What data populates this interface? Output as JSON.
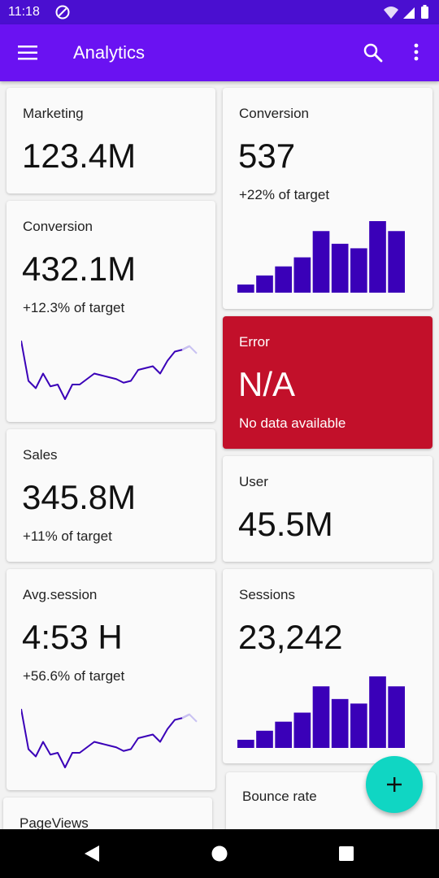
{
  "status_bar": {
    "time": "11:18",
    "dnd_icon": "dnd-circle-icon",
    "wifi_icon": "wifi-icon",
    "signal_icon": "signal-icon",
    "battery_icon": "battery-icon"
  },
  "app_bar": {
    "title": "Analytics",
    "menu_icon": "hamburger-menu-icon",
    "search_icon": "search-icon",
    "more_icon": "more-vert-icon",
    "color": "#6a12f2"
  },
  "cards": {
    "marketing": {
      "title": "Marketing",
      "value": "123.4M"
    },
    "conversion_left": {
      "title": "Conversion",
      "value": "432.1M",
      "subtitle": "+12.3% of target",
      "chart_data": {
        "type": "line",
        "values": [
          40,
          18,
          14,
          22,
          15,
          16,
          8,
          16,
          16,
          19,
          22,
          21,
          20,
          19,
          17,
          18,
          24,
          25,
          26,
          22,
          29,
          34,
          35,
          37,
          33
        ]
      }
    },
    "sales": {
      "title": "Sales",
      "value": "345.8M",
      "subtitle": "+11% of target"
    },
    "avg_session": {
      "title": "Avg.session",
      "value": "4:53 H",
      "subtitle": "+56.6% of target",
      "chart_data": {
        "type": "line",
        "values": [
          40,
          18,
          14,
          22,
          15,
          16,
          8,
          16,
          16,
          19,
          22,
          21,
          20,
          19,
          17,
          18,
          24,
          25,
          26,
          22,
          29,
          34,
          35,
          37,
          33
        ]
      }
    },
    "pageviews": {
      "title": "PageViews",
      "value": ""
    },
    "conversion_right": {
      "title": "Conversion",
      "value": "537",
      "subtitle": "+22% of target",
      "chart_data": {
        "type": "bar",
        "values": [
          9,
          19,
          29,
          39,
          68,
          54,
          49,
          79,
          68
        ]
      }
    },
    "error": {
      "title": "Error",
      "value": "N/A",
      "subtitle": "No data available",
      "color": "#c2102a"
    },
    "user": {
      "title": "User",
      "value": "45.5M"
    },
    "sessions": {
      "title": "Sessions",
      "value": "23,242",
      "chart_data": {
        "type": "bar",
        "values": [
          9,
          19,
          29,
          39,
          68,
          54,
          49,
          79,
          68
        ]
      }
    },
    "bounce_rate": {
      "title": "Bounce rate",
      "value": ""
    }
  },
  "colors": {
    "chart_primary": "#3a00b8",
    "chart_faded": "#c9c2f2",
    "fab": "#10d6c3"
  },
  "fab": {
    "icon": "add-icon"
  },
  "nav_bar": {
    "back_icon": "nav-back-icon",
    "home_icon": "nav-home-icon",
    "recent_icon": "nav-recent-icon"
  }
}
